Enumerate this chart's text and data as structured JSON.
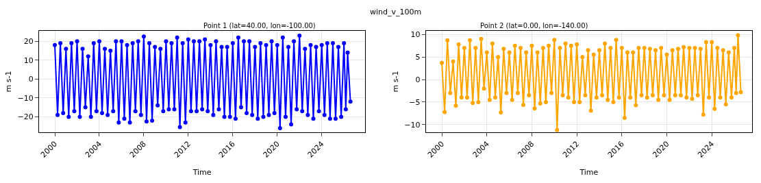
{
  "chart_data": [
    {
      "type": "line",
      "title": "Point 1 (lat=40.00, lon=-100.00)",
      "xlabel": "Time",
      "ylabel": "m s-1",
      "annotations": [
        "wind_v_100m"
      ],
      "x": [
        "2000-01",
        "2000-04",
        "2000-07",
        "2000-10",
        "2001-01",
        "2001-04",
        "2001-07",
        "2001-10",
        "2002-01",
        "2002-04",
        "2002-07",
        "2002-10",
        "2003-01",
        "2003-04",
        "2003-07",
        "2003-10",
        "2004-01",
        "2004-04",
        "2004-07",
        "2004-10",
        "2005-01",
        "2005-04",
        "2005-07",
        "2005-10",
        "2006-01",
        "2006-04",
        "2006-07",
        "2006-10",
        "2007-01",
        "2007-04",
        "2007-07",
        "2007-10",
        "2008-01",
        "2008-04",
        "2008-07",
        "2008-10",
        "2009-01",
        "2009-04",
        "2009-07",
        "2009-10",
        "2010-01",
        "2010-04",
        "2010-07",
        "2010-10",
        "2011-01",
        "2011-04",
        "2011-07",
        "2011-10",
        "2012-01",
        "2012-04",
        "2012-07",
        "2012-10",
        "2013-01",
        "2013-04",
        "2013-07",
        "2013-10",
        "2014-01",
        "2014-04",
        "2014-07",
        "2014-10",
        "2015-01",
        "2015-04",
        "2015-07",
        "2015-10",
        "2016-01",
        "2016-04",
        "2016-07",
        "2016-10",
        "2017-01",
        "2017-04",
        "2017-07",
        "2017-10",
        "2018-01",
        "2018-04",
        "2018-07",
        "2018-10",
        "2019-01",
        "2019-04",
        "2019-07",
        "2019-10",
        "2020-01",
        "2020-04",
        "2020-07",
        "2020-10",
        "2021-01",
        "2021-04",
        "2021-07",
        "2021-10",
        "2022-01",
        "2022-04",
        "2022-07",
        "2022-10",
        "2023-01",
        "2023-04",
        "2023-07",
        "2023-10",
        "2024-01",
        "2024-04",
        "2024-07",
        "2024-10",
        "2025-01",
        "2025-04",
        "2025-07",
        "2025-10",
        "2026-01",
        "2026-03",
        "2026-05",
        "2026-08"
      ],
      "series": [
        {
          "color": "#0000ff",
          "values": [
            18,
            -19,
            19,
            -18,
            16,
            -20,
            19,
            -17,
            20,
            -20,
            16,
            -15,
            12,
            -20,
            19,
            -17,
            20,
            -18,
            16,
            -19,
            15,
            -17,
            20,
            -23,
            20,
            -21,
            18,
            -23,
            19,
            -17,
            20,
            -19,
            22.5,
            -22.5,
            19,
            -22,
            17,
            -14,
            16,
            -17,
            20,
            -16,
            19,
            -16,
            22,
            -25.5,
            19,
            -23,
            21,
            -17,
            20,
            -17,
            20,
            -16,
            21,
            -17,
            18,
            -19,
            20,
            -16,
            17,
            -20,
            17,
            -20,
            19,
            -21,
            22,
            -15,
            20,
            -18,
            20,
            -19,
            17,
            -21,
            19,
            -20,
            18,
            -19,
            20,
            -18,
            18,
            -26,
            22,
            -20,
            17,
            -24,
            20,
            -16,
            23,
            -17,
            16,
            -19,
            18,
            -21,
            17,
            -17,
            18,
            -19,
            19,
            -21,
            19,
            -21,
            17,
            -20,
            19,
            -16,
            14,
            -12
          ]
        }
      ],
      "xlim": [
        "1998-08",
        "2027-12"
      ],
      "xticks": [
        "2000",
        "2004",
        "2008",
        "2012",
        "2016",
        "2020",
        "2024"
      ],
      "ylim": [
        -28.2,
        25.5
      ],
      "yticks": [
        -20,
        -10,
        0,
        10,
        20
      ],
      "grid": true,
      "marker": "circle",
      "line_style": "solid"
    },
    {
      "type": "line",
      "title": "Point 2 (lat=0.00, lon=-140.00)",
      "xlabel": "Time",
      "ylabel": "m s-1",
      "x": [
        "2000-01",
        "2000-04",
        "2000-07",
        "2000-10",
        "2001-01",
        "2001-04",
        "2001-07",
        "2001-10",
        "2002-01",
        "2002-04",
        "2002-07",
        "2002-10",
        "2003-01",
        "2003-04",
        "2003-07",
        "2003-10",
        "2004-01",
        "2004-04",
        "2004-07",
        "2004-10",
        "2005-01",
        "2005-04",
        "2005-07",
        "2005-10",
        "2006-01",
        "2006-04",
        "2006-07",
        "2006-10",
        "2007-01",
        "2007-04",
        "2007-07",
        "2007-10",
        "2008-01",
        "2008-04",
        "2008-07",
        "2008-10",
        "2009-01",
        "2009-04",
        "2009-07",
        "2009-10",
        "2010-01",
        "2010-04",
        "2010-07",
        "2010-10",
        "2011-01",
        "2011-04",
        "2011-07",
        "2011-10",
        "2012-01",
        "2012-04",
        "2012-07",
        "2012-10",
        "2013-01",
        "2013-04",
        "2013-07",
        "2013-10",
        "2014-01",
        "2014-04",
        "2014-07",
        "2014-10",
        "2015-01",
        "2015-04",
        "2015-07",
        "2015-10",
        "2016-01",
        "2016-04",
        "2016-07",
        "2016-10",
        "2017-01",
        "2017-04",
        "2017-07",
        "2017-10",
        "2018-01",
        "2018-04",
        "2018-07",
        "2018-10",
        "2019-01",
        "2019-04",
        "2019-07",
        "2019-10",
        "2020-01",
        "2020-04",
        "2020-07",
        "2020-10",
        "2021-01",
        "2021-04",
        "2021-07",
        "2021-10",
        "2022-01",
        "2022-04",
        "2022-07",
        "2022-10",
        "2023-01",
        "2023-04",
        "2023-07",
        "2023-10",
        "2024-01",
        "2024-04",
        "2024-07",
        "2024-10",
        "2025-01",
        "2025-04",
        "2025-07",
        "2025-10",
        "2026-01",
        "2026-03",
        "2026-05",
        "2026-08"
      ],
      "series": [
        {
          "color": "#ffa500",
          "values": [
            3.7,
            -7.2,
            8.7,
            -3,
            4,
            -5.8,
            7.8,
            -4,
            7,
            -4,
            8.7,
            -5.2,
            7,
            -5,
            9,
            -2,
            6,
            -4.5,
            8,
            -4,
            5,
            -7.3,
            6.8,
            -3,
            6,
            -4.5,
            7.5,
            -3,
            7,
            -5.6,
            6,
            -3.5,
            7.5,
            -6.4,
            6,
            -5.3,
            7,
            -5,
            7.5,
            -3,
            8.8,
            -11.2,
            7,
            -3.5,
            8,
            -4,
            7.5,
            -5,
            7.8,
            -5,
            5,
            -3.5,
            6.5,
            -6.9,
            5.5,
            -4,
            6.5,
            -3.5,
            8,
            -4.5,
            7,
            -5,
            8.8,
            -4,
            7,
            -8.5,
            6,
            -4,
            6,
            -5.7,
            7,
            -3.5,
            7,
            -4,
            6.8,
            -3.5,
            6.5,
            -4.5,
            7,
            -3.5,
            5.5,
            -4.5,
            6.5,
            -3.5,
            6.8,
            -3.5,
            7.2,
            -4,
            7,
            -4.3,
            7,
            -3.5,
            6.8,
            -7.8,
            8.3,
            -4,
            8.3,
            -6.5,
            7,
            -4,
            6.5,
            -5.5,
            6,
            -4,
            7,
            -3,
            9.8,
            -2.8
          ]
        }
      ],
      "xlim": [
        "1998-08",
        "2027-08"
      ],
      "xticks": [
        "2000",
        "2004",
        "2008",
        "2012",
        "2016",
        "2020",
        "2024"
      ],
      "ylim": [
        -11.7,
        10.8
      ],
      "yticks": [
        -10,
        -5,
        0,
        5,
        10
      ],
      "grid": true,
      "marker": "circle",
      "line_style": "solid"
    }
  ]
}
